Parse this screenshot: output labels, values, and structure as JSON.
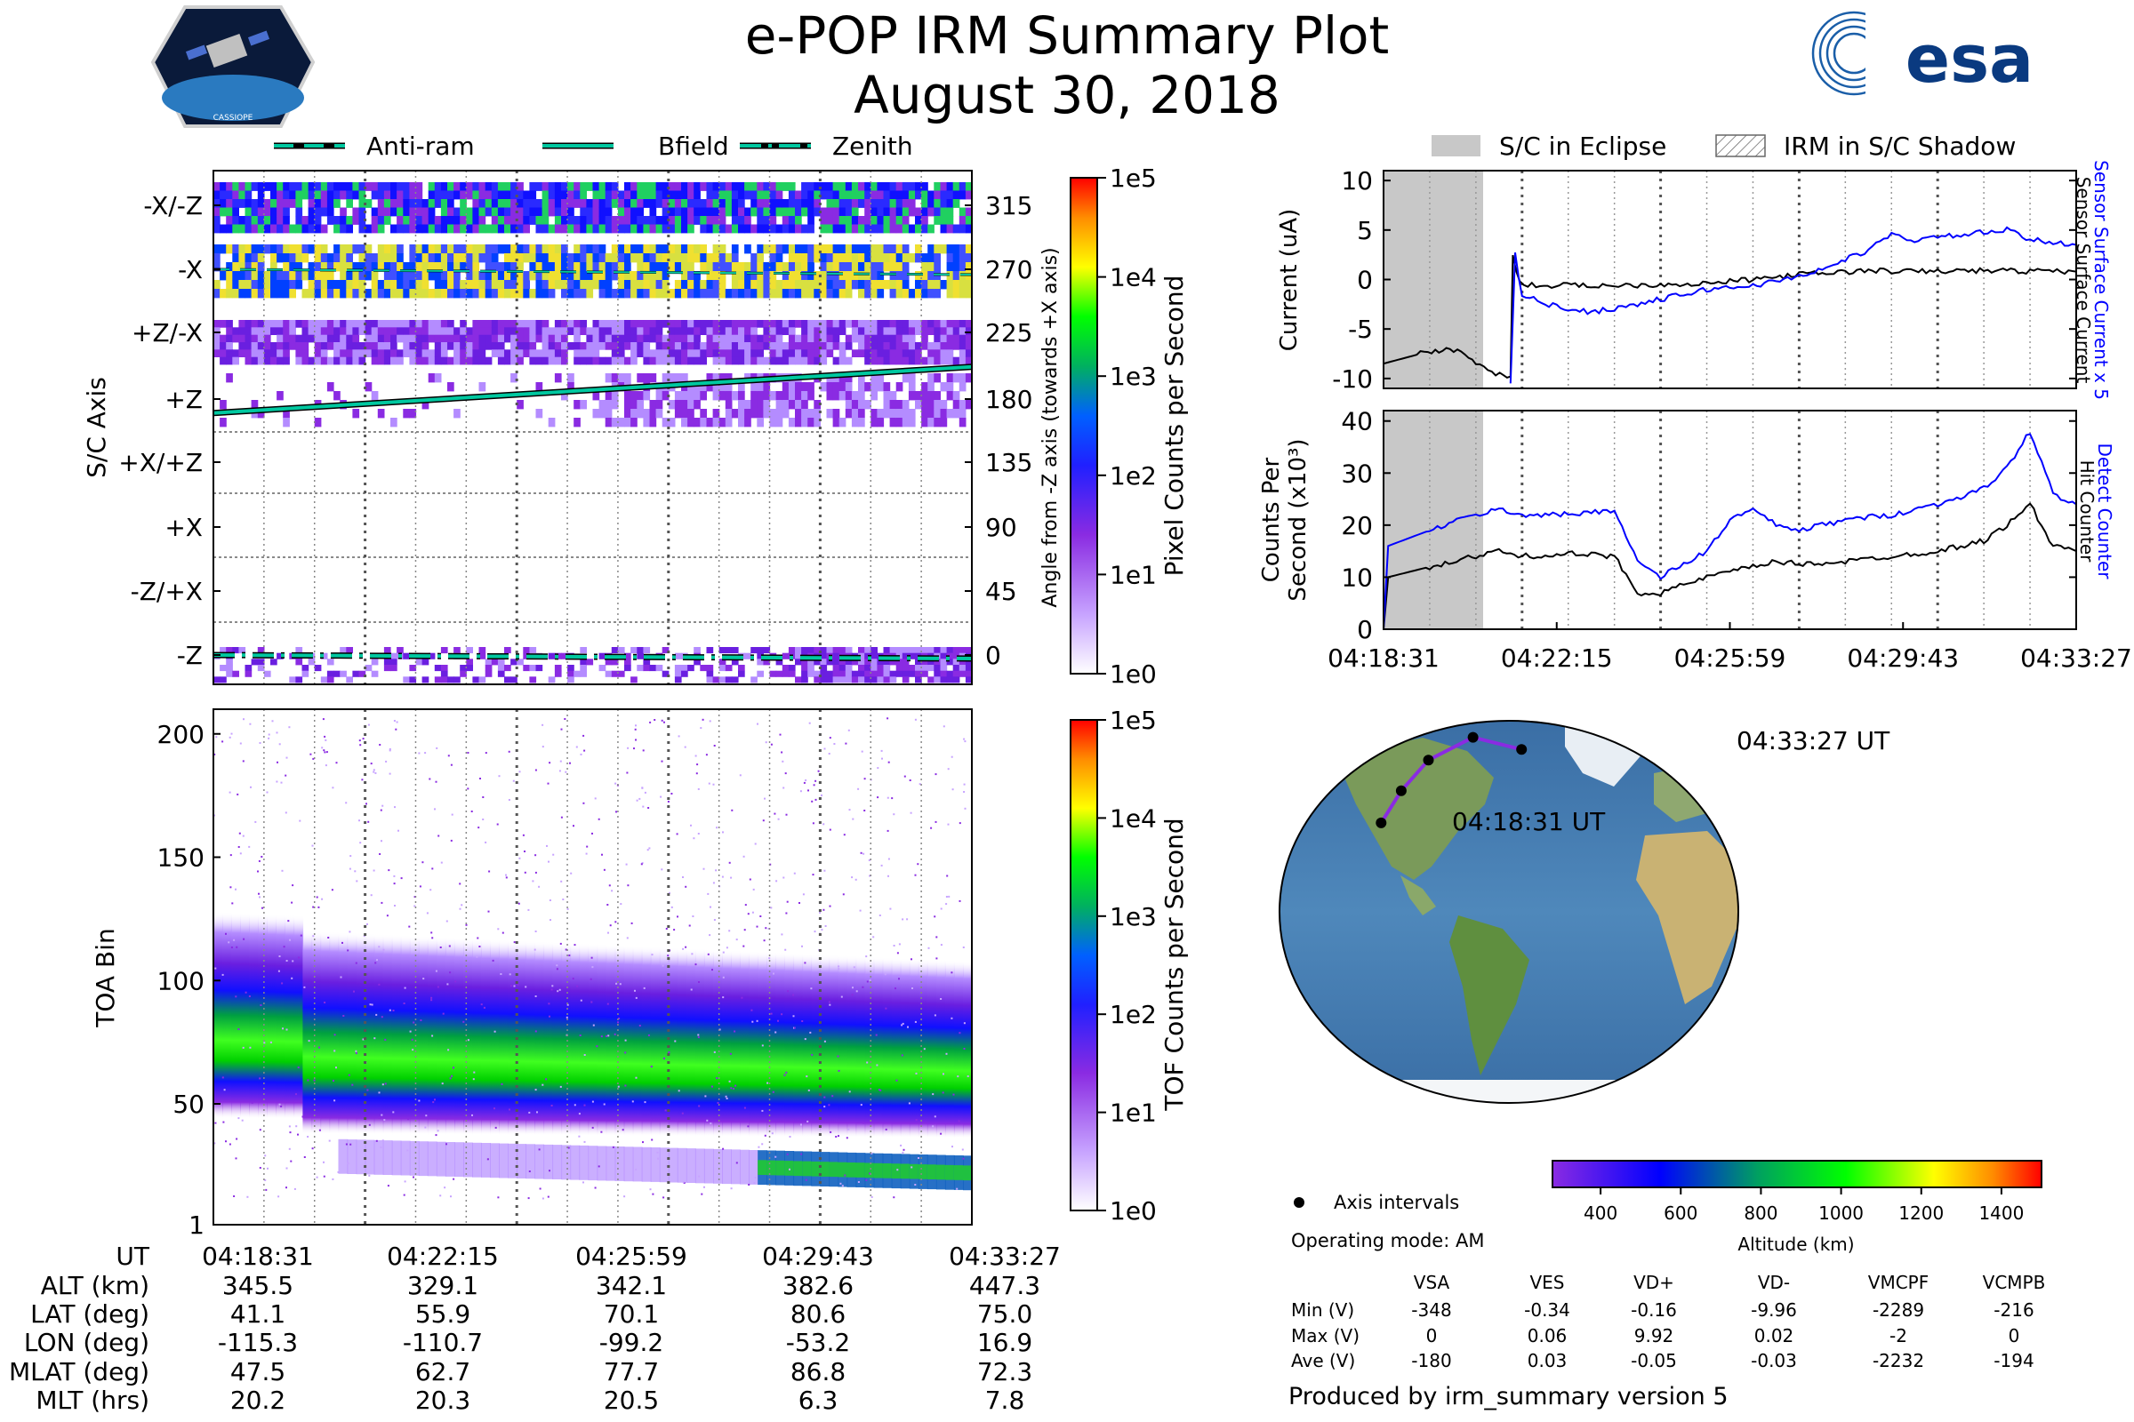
{
  "title": "e-POP IRM Summary Plot",
  "date": "August 30, 2018",
  "logos": {
    "mission": "CASSIOPE",
    "agency": "esa"
  },
  "legend_top_left": [
    {
      "label": "Anti-ram",
      "style": "dashed"
    },
    {
      "label": "Bfield",
      "style": "solid"
    },
    {
      "label": "Zenith",
      "style": "dashdot"
    }
  ],
  "legend_top_right": [
    {
      "label": "S/C in Eclipse",
      "style": "gray-fill"
    },
    {
      "label": "IRM in S/C Shadow",
      "style": "hatch"
    }
  ],
  "time_ticks": [
    "04:18:31",
    "04:22:15",
    "04:25:59",
    "04:29:43",
    "04:33:27"
  ],
  "colors": {
    "bfield": "#00c8a0",
    "blue": "#0000ff",
    "eclipse": "#c8c8c8",
    "track": "#8a2be2",
    "accent_cmap": [
      "#ffffff",
      "#8a2be2",
      "#0000ff",
      "#00a000",
      "#00ff00",
      "#ffff00",
      "#ff8c00",
      "#ff0000"
    ]
  },
  "chart_data": [
    {
      "id": "sc-axis-spectrogram",
      "type": "heatmap",
      "ylabel": "S/C Axis",
      "y_categories": [
        "-X/-Z",
        "-X",
        "+Z/-X",
        "+Z",
        "+X/+Z",
        "+X",
        "-Z/+X",
        "-Z"
      ],
      "right_ylabel": "Angle from -Z axis (towards +X axis)",
      "right_ticks": [
        315,
        270,
        225,
        180,
        135,
        90,
        45,
        0
      ],
      "colorbar_label": "Pixel Counts per Second",
      "colorbar_ticks": [
        "1e5",
        "1e4",
        "1e3",
        "1e2",
        "1e1",
        "1e0"
      ],
      "bfield_angle": {
        "start": 170,
        "end": 203
      },
      "antiram_angle": 270,
      "zenith_angle": 0
    },
    {
      "id": "toa-spectrogram",
      "type": "heatmap",
      "ylabel": "TOA Bin",
      "yticks": [
        1,
        50,
        100,
        150,
        200
      ],
      "ylim": [
        1,
        210
      ],
      "colorbar_label": "TOF Counts per Second",
      "colorbar_ticks": [
        "1e5",
        "1e4",
        "1e3",
        "1e2",
        "1e1",
        "1e0"
      ],
      "band_center_start": 80,
      "band_center_end": 72
    },
    {
      "id": "current",
      "type": "line",
      "ylabel": "Current (uA)",
      "yticks": [
        10,
        5,
        0,
        -5,
        -10
      ],
      "ylim": [
        -11,
        11
      ],
      "series": [
        {
          "name": "Sensor Surface Current",
          "color": "#000000",
          "points": [
            [
              0,
              -8.5
            ],
            [
              0.8,
              -7.5
            ],
            [
              1.6,
              -7
            ],
            [
              2.0,
              -8.5
            ],
            [
              2.6,
              -9.8
            ],
            [
              2.75,
              -9.8
            ],
            [
              2.8,
              2.5
            ],
            [
              2.95,
              -0.4
            ],
            [
              3.3,
              -0.6
            ],
            [
              5.0,
              -0.6
            ],
            [
              7.0,
              -0.4
            ],
            [
              8.0,
              0
            ],
            [
              9.0,
              0.5
            ],
            [
              10.5,
              0.9
            ],
            [
              11.5,
              0.8
            ],
            [
              13.0,
              0.9
            ],
            [
              15.0,
              0.8
            ]
          ]
        },
        {
          "name": "Sensor Surface Current x 5",
          "color": "#0000ff",
          "points": [
            [
              2.75,
              -10.5
            ],
            [
              2.85,
              2.5
            ],
            [
              3.0,
              -1.5
            ],
            [
              3.5,
              -2.5
            ],
            [
              4.5,
              -3.3
            ],
            [
              5.5,
              -2.5
            ],
            [
              6.5,
              -1.5
            ],
            [
              7.0,
              -1.0
            ],
            [
              8.0,
              -0.6
            ],
            [
              8.5,
              -0.2
            ],
            [
              9.5,
              1.0
            ],
            [
              10.5,
              3.0
            ],
            [
              11.0,
              4.5
            ],
            [
              11.5,
              4.0
            ],
            [
              12.5,
              4.5
            ],
            [
              13.5,
              5.0
            ],
            [
              14.0,
              4.0
            ],
            [
              15.0,
              3.5
            ]
          ]
        }
      ]
    },
    {
      "id": "counts",
      "type": "line",
      "ylabel": "Counts Per Second (x10³)",
      "yticks": [
        40,
        30,
        20,
        10,
        0
      ],
      "ylim": [
        0,
        42
      ],
      "series": [
        {
          "name": "Hit Counter",
          "color": "#000000",
          "points": [
            [
              0,
              0
            ],
            [
              0.1,
              10
            ],
            [
              1.0,
              12
            ],
            [
              2.0,
              14
            ],
            [
              2.5,
              15
            ],
            [
              3.0,
              14
            ],
            [
              4.0,
              14.5
            ],
            [
              5.0,
              14
            ],
            [
              5.5,
              7
            ],
            [
              6.0,
              7
            ],
            [
              7.0,
              10
            ],
            [
              7.5,
              11
            ],
            [
              8.0,
              12
            ],
            [
              8.5,
              13
            ],
            [
              9.0,
              12.5
            ],
            [
              10.0,
              13
            ],
            [
              11.0,
              14
            ],
            [
              12.0,
              15
            ],
            [
              13.0,
              17
            ],
            [
              13.5,
              20
            ],
            [
              14.0,
              24
            ],
            [
              14.5,
              16
            ],
            [
              15.0,
              15
            ]
          ]
        },
        {
          "name": "Detect Counter",
          "color": "#0000ff",
          "points": [
            [
              0,
              0
            ],
            [
              0.1,
              16
            ],
            [
              1.0,
              19
            ],
            [
              2.0,
              22
            ],
            [
              2.5,
              23
            ],
            [
              3.0,
              22
            ],
            [
              4.0,
              22
            ],
            [
              5.0,
              23
            ],
            [
              5.5,
              13
            ],
            [
              6.0,
              10
            ],
            [
              7.0,
              15
            ],
            [
              7.5,
              21
            ],
            [
              8.0,
              23
            ],
            [
              8.5,
              20
            ],
            [
              9.0,
              19
            ],
            [
              10.0,
              21
            ],
            [
              11.0,
              22
            ],
            [
              12.0,
              24
            ],
            [
              13.0,
              27
            ],
            [
              13.5,
              31
            ],
            [
              14.0,
              38
            ],
            [
              14.5,
              26
            ],
            [
              15.0,
              24
            ]
          ]
        }
      ]
    },
    {
      "id": "orbit-map",
      "type": "scatter",
      "projection": "Robinson",
      "track_lonlat": [
        [
          -115.3,
          41.1
        ],
        [
          -110.7,
          55.9
        ],
        [
          -99.2,
          70.1
        ],
        [
          -53.2,
          80.6
        ],
        [
          16.9,
          75.0
        ]
      ],
      "labels": {
        "start": "04:18:31 UT",
        "end": "04:33:27 UT"
      },
      "colorbar_label": "Altitude (km)",
      "colorbar_ticks": [
        400,
        600,
        800,
        1000,
        1200,
        1400
      ],
      "colorbar_range": [
        280,
        1500
      ]
    }
  ],
  "ephemeris": {
    "rows": [
      {
        "label": "UT",
        "values": [
          "04:18:31",
          "04:22:15",
          "04:25:59",
          "04:29:43",
          "04:33:27"
        ]
      },
      {
        "label": "ALT (km)",
        "values": [
          "345.5",
          "329.1",
          "342.1",
          "382.6",
          "447.3"
        ]
      },
      {
        "label": "LAT (deg)",
        "values": [
          "41.1",
          "55.9",
          "70.1",
          "80.6",
          "75.0"
        ]
      },
      {
        "label": "LON (deg)",
        "values": [
          "-115.3",
          "-110.7",
          "-99.2",
          "-53.2",
          "16.9"
        ]
      },
      {
        "label": "MLAT (deg)",
        "values": [
          "47.5",
          "62.7",
          "77.7",
          "86.8",
          "72.3"
        ]
      },
      {
        "label": "MLT (hrs)",
        "values": [
          "20.2",
          "20.3",
          "20.5",
          "6.3",
          "7.8"
        ]
      }
    ]
  },
  "info": {
    "axis_intervals": "Axis intervals",
    "operating_mode": "Operating mode: AM",
    "produced_by": "Produced by irm_summary version 5"
  },
  "voltages": {
    "columns": [
      "VSA",
      "VES",
      "VD+",
      "VD-",
      "VMCPF",
      "VCMPB"
    ],
    "rows": [
      {
        "label": "Min (V)",
        "values": [
          "-348",
          "-0.34",
          "-0.16",
          "-9.96",
          "-2289",
          "-216"
        ]
      },
      {
        "label": "Max (V)",
        "values": [
          "0",
          "0.06",
          "9.92",
          "0.02",
          "-2",
          "0"
        ]
      },
      {
        "label": "Ave (V)",
        "values": [
          "-180",
          "0.03",
          "-0.05",
          "-0.03",
          "-2232",
          "-194"
        ]
      }
    ]
  }
}
